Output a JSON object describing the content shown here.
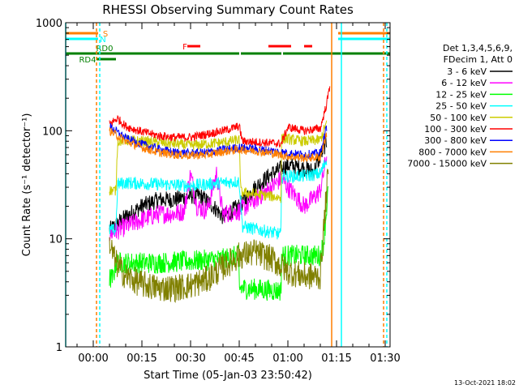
{
  "chart_data": {
    "type": "line",
    "title": "RHESSI Observing Summary Count Rates",
    "xlabel": "Start Time (05-Jan-03 23:50:42)",
    "ylabel": "Count Rate (s⁻¹ detector⁻¹)",
    "y_scale": "log",
    "ylim": [
      1,
      1000
    ],
    "xlim_minutes_after_start": [
      -8.5,
      91.5
    ],
    "x_tick_labels": [
      "00:00",
      "00:15",
      "00:30",
      "00:45",
      "01:00",
      "01:15",
      "01:30"
    ],
    "x_tick_minutes": [
      0,
      15,
      30,
      45,
      60,
      75,
      90
    ],
    "y_tick_labels": [
      "1",
      "10",
      "100",
      "1000"
    ],
    "legend_header": [
      "Det 1,3,4,5,6,9,",
      "FDecim 1, Att 0"
    ],
    "legend_position": "right",
    "timestamp": "13-Oct-2021 18:02",
    "flag_bars": [
      {
        "label": "S",
        "color": "#ff7f00",
        "segments": [
          [
            -8.5,
            1.5
          ],
          [
            75.5,
            91.5
          ]
        ]
      },
      {
        "label": "N",
        "color": "#00ffff",
        "segments": [
          [
            -8.5,
            1.5
          ],
          [
            75.5,
            91.5
          ]
        ]
      },
      {
        "label": "F",
        "color": "#ff0000",
        "segments": [
          [
            29,
            33
          ],
          [
            54,
            61
          ],
          [
            65,
            67.5
          ]
        ]
      },
      {
        "label": "RD0",
        "color": "#008000",
        "segments": [
          [
            -8.5,
            45
          ],
          [
            45.5,
            58
          ],
          [
            58.5,
            91.5
          ]
        ]
      },
      {
        "label": "RD4",
        "color": "#008000",
        "segments": [
          [
            1,
            7
          ]
        ]
      }
    ],
    "vertical_markers": [
      {
        "color": "#00ffff",
        "style": "solid",
        "minutes": [
          -8.5,
          76.5
        ]
      },
      {
        "color": "#ff7f00",
        "style": "dashed",
        "minutes": [
          1.0,
          89.5
        ]
      },
      {
        "color": "#00ffff",
        "style": "dashed",
        "minutes": [
          2.0,
          90.5
        ]
      },
      {
        "color": "#ff7f00",
        "style": "solid",
        "minutes": [
          73.5
        ]
      }
    ],
    "series": [
      {
        "name": "3 - 6 keV",
        "color": "#000000",
        "noise": 0.08,
        "x": [
          5,
          10,
          15,
          20,
          25,
          30,
          33,
          37,
          40,
          45,
          50,
          55,
          60,
          65,
          68,
          70,
          72
        ],
        "y": [
          12,
          16,
          20,
          23,
          23,
          25,
          25,
          20,
          16,
          20,
          30,
          40,
          48,
          45,
          42,
          58,
          80
        ]
      },
      {
        "name": "6 - 12 keV",
        "color": "#ff00ff",
        "noise": 0.09,
        "x": [
          5,
          10,
          15,
          20,
          25,
          28,
          30,
          32,
          35,
          38,
          40,
          45,
          50,
          55,
          58,
          60,
          65,
          68,
          70,
          72
        ],
        "y": [
          11,
          13,
          15,
          17,
          17,
          18,
          40,
          20,
          18,
          40,
          17,
          18,
          23,
          30,
          36,
          30,
          20,
          24,
          28,
          60
        ]
      },
      {
        "name": "12 - 25 keV",
        "color": "#00ff00",
        "noise": 0.1,
        "x": [
          5,
          6,
          7,
          10,
          20,
          30,
          40,
          44.9,
          45,
          57.9,
          58,
          65,
          70,
          71,
          72.5
        ],
        "y": [
          4.3,
          4.3,
          6,
          6,
          6,
          6.2,
          6.5,
          7,
          3.5,
          3.3,
          7,
          7,
          7,
          9,
          30
        ]
      },
      {
        "name": "25 - 50 keV",
        "color": "#00ffff",
        "noise": 0.06,
        "x": [
          5,
          7,
          7.5,
          10,
          20,
          30,
          40,
          45,
          46,
          57.9,
          58,
          65,
          70,
          72
        ],
        "y": [
          12,
          12,
          32,
          33,
          32,
          31,
          33,
          34,
          13,
          11,
          38,
          38,
          40,
          55
        ]
      },
      {
        "name": "50 - 100 keV",
        "color": "#cccc00",
        "noise": 0.05,
        "x": [
          5,
          7,
          7.5,
          10,
          20,
          30,
          40,
          45,
          45.5,
          57.9,
          58,
          65,
          70,
          72
        ],
        "y": [
          28,
          28,
          80,
          82,
          78,
          73,
          78,
          82,
          27,
          24,
          85,
          80,
          82,
          120
        ]
      },
      {
        "name": "100 - 300 keV",
        "color": "#ff0000",
        "noise": 0.04,
        "x": [
          5,
          7.5,
          10,
          15,
          20,
          25,
          30,
          35,
          40,
          45,
          46,
          58,
          60,
          65,
          70,
          72,
          73
        ],
        "y": [
          115,
          130,
          110,
          98,
          90,
          87,
          87,
          93,
          100,
          110,
          80,
          76,
          108,
          100,
          105,
          180,
          270
        ]
      },
      {
        "name": "300 - 800 keV",
        "color": "#0000ff",
        "noise": 0.04,
        "x": [
          5,
          10,
          15,
          20,
          25,
          30,
          35,
          40,
          45,
          50,
          55,
          60,
          65,
          70,
          72
        ],
        "y": [
          110,
          85,
          75,
          68,
          63,
          62,
          63,
          67,
          70,
          68,
          65,
          62,
          60,
          62,
          110
        ]
      },
      {
        "name": "800 - 7000 keV",
        "color": "#ff7f00",
        "noise": 0.04,
        "x": [
          5,
          10,
          15,
          20,
          25,
          30,
          35,
          40,
          45,
          50,
          55,
          60,
          65,
          70,
          72
        ],
        "y": [
          100,
          80,
          70,
          63,
          60,
          59,
          60,
          64,
          67,
          65,
          62,
          58,
          56,
          57,
          95
        ]
      },
      {
        "name": "7000 - 15000 keV",
        "color": "#808000",
        "noise": 0.13,
        "x": [
          5,
          7,
          10,
          15,
          20,
          25,
          30,
          35,
          40,
          45,
          50,
          55,
          60,
          65,
          70,
          71,
          72.5
        ],
        "y": [
          9,
          6,
          4.5,
          3.8,
          3.5,
          3.5,
          3.7,
          4.2,
          5.5,
          7,
          7.5,
          6.5,
          5,
          4.5,
          4.5,
          12,
          45
        ]
      }
    ]
  }
}
